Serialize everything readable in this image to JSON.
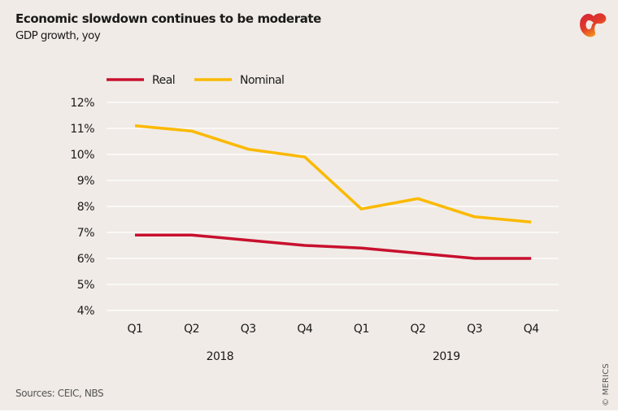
{
  "header": {
    "title": "Economic slowdown continues to be moderate",
    "subtitle": "GDP growth, yoy",
    "logo_icon": "merics-logo-icon"
  },
  "footer": {
    "source": "Sources: CEIC, NBS",
    "copyright": "© MERICS"
  },
  "colors": {
    "background": "#f0ebe6",
    "gridline": "#ffffff",
    "real": "#c8102e",
    "nominal": "#fbb900"
  },
  "chart_data": {
    "type": "line",
    "title": "Economic slowdown continues to be moderate",
    "subtitle": "GDP growth, yoy",
    "xlabel": "",
    "ylabel": "",
    "categories": [
      "Q1",
      "Q2",
      "Q3",
      "Q4",
      "Q1",
      "Q2",
      "Q3",
      "Q4"
    ],
    "category_groups": [
      {
        "label": "2018",
        "span": [
          0,
          3
        ]
      },
      {
        "label": "2019",
        "span": [
          4,
          7
        ]
      }
    ],
    "ylim": [
      4,
      12
    ],
    "yticks": [
      4,
      5,
      6,
      7,
      8,
      9,
      10,
      11,
      12
    ],
    "ytick_labels": [
      "4%",
      "5%",
      "6%",
      "7%",
      "8%",
      "9%",
      "10%",
      "11%",
      "12%"
    ],
    "grid": true,
    "legend_position": "top-left",
    "series": [
      {
        "name": "Real",
        "color": "#c8102e",
        "values": [
          6.9,
          6.9,
          6.7,
          6.5,
          6.4,
          6.2,
          6.0,
          6.0
        ]
      },
      {
        "name": "Nominal",
        "color": "#fbb900",
        "values": [
          11.1,
          10.9,
          10.2,
          9.9,
          7.9,
          8.3,
          7.6,
          7.4
        ]
      }
    ]
  }
}
